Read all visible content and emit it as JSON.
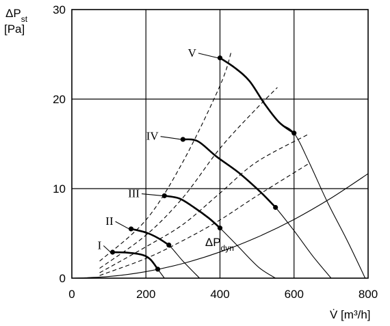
{
  "chart_data": {
    "type": "line",
    "title": "",
    "xlabel": "V̇ [m³/h]",
    "ylabel_main": "ΔP",
    "ylabel_sub": "st",
    "ylabel_unit": "[Pa]",
    "xlim": [
      0,
      800
    ],
    "ylim": [
      0,
      30
    ],
    "xticks": [
      0,
      200,
      400,
      600,
      800
    ],
    "yticks": [
      0,
      10,
      20,
      30
    ],
    "grid": true,
    "fan_curves": [
      {
        "name": "I",
        "label_at": [
          80,
          3.7
        ],
        "full": [
          [
            110,
            2.9
          ],
          [
            150,
            2.85
          ],
          [
            190,
            2.6
          ],
          [
            212,
            2.1
          ],
          [
            232,
            1.0
          ],
          [
            250,
            0
          ]
        ],
        "operating": [
          [
            110,
            2.9
          ],
          [
            150,
            2.85
          ],
          [
            190,
            2.6
          ],
          [
            212,
            2.1
          ],
          [
            232,
            1.0
          ]
        ]
      },
      {
        "name": "II",
        "label_at": [
          112,
          6.4
        ],
        "full": [
          [
            160,
            5.5
          ],
          [
            200,
            5.1
          ],
          [
            232,
            4.5
          ],
          [
            262,
            3.7
          ],
          [
            300,
            1.9
          ],
          [
            345,
            0
          ]
        ],
        "operating": [
          [
            160,
            5.5
          ],
          [
            200,
            5.1
          ],
          [
            232,
            4.5
          ],
          [
            262,
            3.7
          ]
        ]
      },
      {
        "name": "III",
        "label_at": [
          183,
          9.5
        ],
        "full": [
          [
            250,
            9.2
          ],
          [
            290,
            8.9
          ],
          [
            330,
            7.9
          ],
          [
            370,
            6.7
          ],
          [
            400,
            5.6
          ],
          [
            450,
            3.5
          ],
          [
            505,
            1.2
          ],
          [
            550,
            0
          ]
        ],
        "operating": [
          [
            250,
            9.2
          ],
          [
            290,
            8.9
          ],
          [
            330,
            7.9
          ],
          [
            370,
            6.7
          ],
          [
            400,
            5.6
          ]
        ]
      },
      {
        "name": "IV",
        "label_at": [
          234,
          15.9
        ],
        "full": [
          [
            300,
            15.5
          ],
          [
            340,
            15.3
          ],
          [
            390,
            13.6
          ],
          [
            450,
            11.8
          ],
          [
            510,
            9.6
          ],
          [
            550,
            7.9
          ],
          [
            600,
            5.3
          ],
          [
            650,
            2.5
          ],
          [
            700,
            0
          ]
        ],
        "operating": [
          [
            300,
            15.5
          ],
          [
            340,
            15.3
          ],
          [
            390,
            13.6
          ],
          [
            450,
            11.8
          ],
          [
            510,
            9.6
          ],
          [
            550,
            7.9
          ]
        ]
      },
      {
        "name": "V",
        "label_at": [
          336,
          25.2
        ],
        "full": [
          [
            400,
            24.6
          ],
          [
            440,
            23.5
          ],
          [
            480,
            22.0
          ],
          [
            520,
            19.5
          ],
          [
            560,
            17.4
          ],
          [
            600,
            16.2
          ],
          [
            640,
            13.0
          ],
          [
            690,
            8.5
          ],
          [
            740,
            4.5
          ],
          [
            775,
            1.5
          ],
          [
            792,
            0
          ]
        ],
        "operating": [
          [
            400,
            24.6
          ],
          [
            440,
            23.5
          ],
          [
            480,
            22.0
          ],
          [
            520,
            19.5
          ],
          [
            560,
            17.4
          ],
          [
            600,
            16.2
          ]
        ]
      }
    ],
    "system_curves": [
      {
        "points": [
          [
            75,
            1.9
          ],
          [
            200,
            6.5
          ],
          [
            300,
            13.0
          ],
          [
            400,
            21.5
          ],
          [
            430,
            25.2
          ]
        ]
      },
      {
        "points": [
          [
            75,
            1.1
          ],
          [
            200,
            4.8
          ],
          [
            300,
            9.0
          ],
          [
            400,
            14.5
          ],
          [
            500,
            19.0
          ],
          [
            555,
            21.3
          ]
        ]
      },
      {
        "points": [
          [
            75,
            0.6
          ],
          [
            200,
            3.5
          ],
          [
            300,
            6.0
          ],
          [
            400,
            9.5
          ],
          [
            500,
            13.0
          ],
          [
            640,
            16.1
          ]
        ]
      },
      {
        "points": [
          [
            75,
            0.3
          ],
          [
            200,
            2.2
          ],
          [
            300,
            4.2
          ],
          [
            400,
            6.5
          ],
          [
            500,
            9.2
          ],
          [
            640,
            12.8
          ]
        ]
      }
    ],
    "dynamic_pressure": {
      "label_main": "ΔP",
      "label_sub": "dyn",
      "label_at": [
        360,
        3.6
      ],
      "points": [
        [
          0,
          0
        ],
        [
          100,
          0.18
        ],
        [
          200,
          0.73
        ],
        [
          300,
          1.64
        ],
        [
          400,
          2.92
        ],
        [
          500,
          4.56
        ],
        [
          600,
          6.56
        ],
        [
          700,
          8.94
        ],
        [
          800,
          11.67
        ]
      ]
    }
  }
}
